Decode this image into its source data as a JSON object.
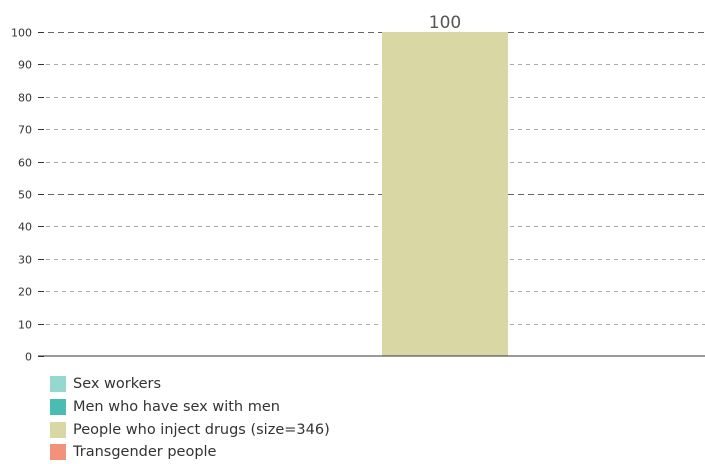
{
  "chart_data": {
    "type": "bar",
    "categories": [
      "Sex workers",
      "Men who have sex with men",
      "People who inject drugs (size=346)",
      "Transgender people"
    ],
    "values": [
      null,
      null,
      100,
      null
    ],
    "ylim": [
      0,
      100
    ],
    "yticks": [
      0,
      10,
      20,
      30,
      40,
      50,
      60,
      70,
      80,
      90,
      100
    ],
    "grid": true,
    "legend_position": "bottom-left",
    "data_labels": [
      "",
      "",
      "100",
      ""
    ],
    "colors": [
      "#96d7cf",
      "#4bbcb1",
      "#d9d7a4",
      "#f2927b"
    ]
  },
  "legend": {
    "items": [
      {
        "label": "Sex workers",
        "color": "#96d7cf"
      },
      {
        "label": "Men who have sex with men",
        "color": "#4bbcb1"
      },
      {
        "label": "People who inject drugs (size=346)",
        "color": "#d9d7a4"
      },
      {
        "label": "Transgender people",
        "color": "#f2927b"
      }
    ]
  }
}
